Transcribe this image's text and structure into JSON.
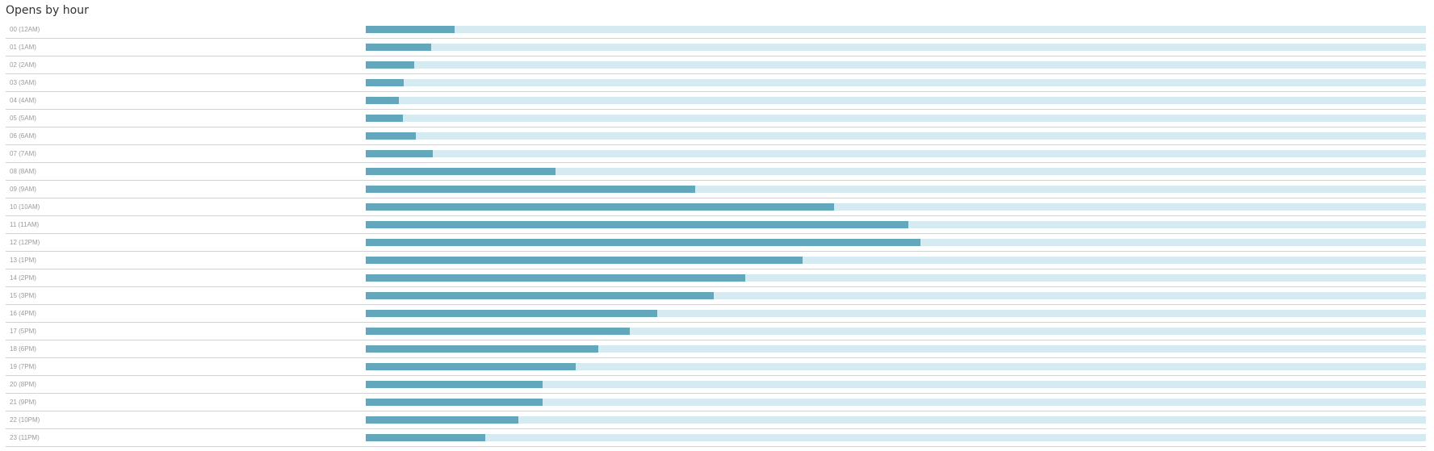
{
  "title": "Opens by hour",
  "colors": {
    "bar_fill": "#62a7bc",
    "bar_track": "#d6eaf1",
    "row_divider": "#d2d2d2",
    "label_text": "#9a9a9a",
    "title_text": "#333333"
  },
  "chart_data": {
    "type": "bar",
    "orientation": "horizontal",
    "title": "Opens by hour",
    "value_unit": "fraction of track",
    "xlim": [
      0,
      1
    ],
    "grid": false,
    "categories": [
      "00 (12AM)",
      "01 (1AM)",
      "02 (2AM)",
      "03 (3AM)",
      "04 (4AM)",
      "05 (5AM)",
      "06 (6AM)",
      "07 (7AM)",
      "08 (8AM)",
      "09 (9AM)",
      "10 (10AM)",
      "11 (11AM)",
      "12 (12PM)",
      "13 (1PM)",
      "14 (2PM)",
      "15 (3PM)",
      "16 (4PM)",
      "17 (5PM)",
      "18 (6PM)",
      "19 (7PM)",
      "20 (8PM)",
      "21 (9PM)",
      "22 (10PM)",
      "23 (11PM)"
    ],
    "values": [
      0.084,
      0.062,
      0.046,
      0.036,
      0.031,
      0.035,
      0.047,
      0.063,
      0.179,
      0.311,
      0.442,
      0.512,
      0.523,
      0.412,
      0.358,
      0.328,
      0.275,
      0.249,
      0.219,
      0.198,
      0.167,
      0.167,
      0.144,
      0.113
    ]
  }
}
